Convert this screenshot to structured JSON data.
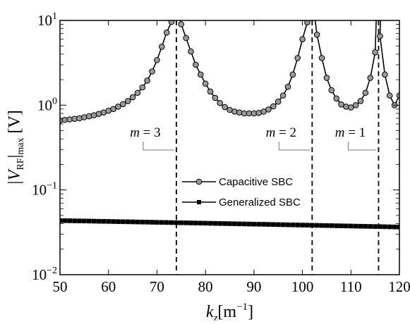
{
  "chart_data": {
    "type": "line",
    "xlabel": "k",
    "xlabel_sub": "z",
    "xlabel_unit": "[m",
    "xlabel_unit_sup": "−1",
    "xlabel_unit_close": "]",
    "ylabel_prefix": "|V",
    "ylabel_sub": "RF",
    "ylabel_mid": "|",
    "ylabel_sub2": "max",
    "ylabel_suffix": " [V]",
    "xlim": [
      50,
      120
    ],
    "ylim": [
      0.01,
      10
    ],
    "yscale": "log",
    "x_ticks": [
      50,
      60,
      70,
      80,
      90,
      100,
      110,
      120
    ],
    "x_tick_labels": [
      "50",
      "60",
      "70",
      "80",
      "90",
      "100",
      "110",
      "120"
    ],
    "y_ticks": [
      {
        "value": 0.01,
        "base": "10",
        "exp": "−2"
      },
      {
        "value": 0.1,
        "base": "10",
        "exp": "−1"
      },
      {
        "value": 1,
        "base": "10",
        "exp": "0"
      },
      {
        "value": 10,
        "base": "10",
        "exp": "1"
      }
    ],
    "grid": false,
    "legend_position": "center",
    "resonances": [
      {
        "x": 74,
        "label_var": "m",
        "label_rest": " = 3"
      },
      {
        "x": 102,
        "label_var": "m",
        "label_rest": " = 2"
      },
      {
        "x": 115.7,
        "label_var": "m",
        "label_rest": " = 1"
      }
    ],
    "series": [
      {
        "name": "Capacitive SBC",
        "marker": "circle",
        "color": "#000000",
        "marker_fill": "#9a9a9a",
        "x": [
          50,
          51,
          52,
          53,
          54,
          55,
          56,
          57,
          58,
          59,
          60,
          61,
          62,
          63,
          64,
          65,
          66,
          67,
          68,
          69,
          70,
          71,
          72,
          73,
          75,
          76,
          77,
          78,
          79,
          80,
          81,
          82,
          83,
          84,
          85,
          86,
          87,
          88,
          89,
          90,
          91,
          92,
          93,
          94,
          95,
          96,
          97,
          98,
          99,
          100,
          101,
          103,
          104,
          105,
          106,
          107,
          108,
          109,
          110,
          111,
          112,
          113,
          114,
          115,
          116,
          117,
          118,
          119,
          120
        ],
        "y": [
          0.66,
          0.67,
          0.68,
          0.69,
          0.7,
          0.72,
          0.74,
          0.76,
          0.79,
          0.82,
          0.86,
          0.9,
          0.96,
          1.03,
          1.12,
          1.24,
          1.4,
          1.62,
          1.95,
          2.5,
          3.4,
          4.9,
          7.2,
          9.6,
          9.0,
          6.2,
          4.3,
          3.0,
          2.3,
          1.8,
          1.45,
          1.22,
          1.06,
          0.95,
          0.88,
          0.84,
          0.82,
          0.8,
          0.8,
          0.8,
          0.81,
          0.84,
          0.89,
          0.97,
          1.1,
          1.3,
          1.65,
          2.3,
          3.6,
          6.0,
          9.5,
          6.8,
          3.6,
          2.1,
          1.5,
          1.2,
          1.02,
          0.96,
          0.94,
          1.0,
          1.12,
          1.4,
          2.1,
          4.2,
          6.5,
          2.3,
          1.3,
          1.0,
          1.3
        ]
      },
      {
        "name": "Generalized SBC",
        "marker": "square",
        "color": "#000000",
        "marker_fill": "#000000",
        "x": [
          50,
          51,
          52,
          53,
          54,
          55,
          56,
          57,
          58,
          59,
          60,
          61,
          62,
          63,
          64,
          65,
          66,
          67,
          68,
          69,
          70,
          71,
          72,
          73,
          74,
          75,
          76,
          77,
          78,
          79,
          80,
          81,
          82,
          83,
          84,
          85,
          86,
          87,
          88,
          89,
          90,
          91,
          92,
          93,
          94,
          95,
          96,
          97,
          98,
          99,
          100,
          101,
          102,
          103,
          104,
          105,
          106,
          107,
          108,
          109,
          110,
          111,
          112,
          113,
          114,
          115,
          116,
          117,
          118,
          119,
          120
        ],
        "y": [
          0.0435,
          0.0434,
          0.0433,
          0.0432,
          0.0431,
          0.043,
          0.0429,
          0.0428,
          0.0427,
          0.0426,
          0.0425,
          0.0424,
          0.0423,
          0.0422,
          0.0421,
          0.042,
          0.0419,
          0.0418,
          0.0417,
          0.0416,
          0.0415,
          0.0414,
          0.0413,
          0.0412,
          0.0411,
          0.041,
          0.0409,
          0.0408,
          0.0407,
          0.0406,
          0.0405,
          0.0404,
          0.0403,
          0.0402,
          0.0401,
          0.04,
          0.0399,
          0.0398,
          0.0397,
          0.0396,
          0.0395,
          0.0394,
          0.0393,
          0.0392,
          0.0391,
          0.039,
          0.0389,
          0.0388,
          0.0387,
          0.0386,
          0.0385,
          0.0384,
          0.0383,
          0.0382,
          0.0381,
          0.038,
          0.0379,
          0.0378,
          0.0377,
          0.0376,
          0.0375,
          0.0374,
          0.0373,
          0.0372,
          0.0371,
          0.037,
          0.0369,
          0.0368,
          0.0367,
          0.0366,
          0.0365
        ]
      }
    ]
  }
}
